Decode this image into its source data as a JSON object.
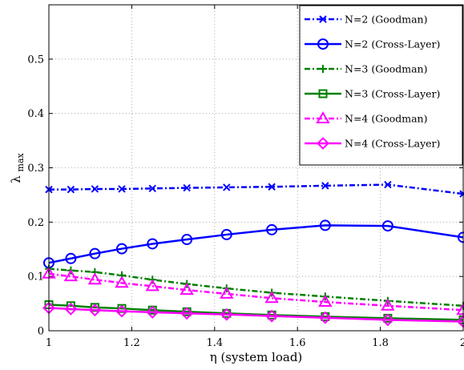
{
  "chart_data": {
    "type": "line",
    "xlabel": "η (system load)",
    "ylabel_main": "λ",
    "ylabel_sub": "max",
    "xlim": [
      1,
      2
    ],
    "ylim": [
      0,
      0.6
    ],
    "xticks": [
      1,
      1.2,
      1.4,
      1.6,
      1.8,
      2
    ],
    "xtick_labels": [
      "1",
      "1.2",
      "1.4",
      "1.6",
      "1.8",
      "2"
    ],
    "yticks": [
      0,
      0.1,
      0.2,
      0.3,
      0.4,
      0.5
    ],
    "ytick_labels": [
      "0",
      "0.1",
      "0.2",
      "0.3",
      "0.4",
      "0.5"
    ],
    "grid": true,
    "legend_position": "top-right",
    "x": [
      1.0,
      1.053,
      1.111,
      1.176,
      1.25,
      1.333,
      1.429,
      1.538,
      1.667,
      1.818,
      2.0
    ],
    "series": [
      {
        "name": "N=2 (Goodman)",
        "color": "#0000ff",
        "marker": "x",
        "dash": "dashdot",
        "values": [
          0.26,
          0.26,
          0.261,
          0.261,
          0.262,
          0.263,
          0.264,
          0.265,
          0.267,
          0.269,
          0.252
        ]
      },
      {
        "name": "N=2 (Cross-Layer)",
        "color": "#0000ff",
        "marker": "circle",
        "dash": "solid",
        "values": [
          0.125,
          0.133,
          0.142,
          0.151,
          0.16,
          0.168,
          0.177,
          0.186,
          0.194,
          0.193,
          0.172
        ]
      },
      {
        "name": "N=3 (Goodman)",
        "color": "#008000",
        "marker": "plus",
        "dash": "dashdot",
        "values": [
          0.114,
          0.111,
          0.108,
          0.102,
          0.094,
          0.086,
          0.078,
          0.07,
          0.063,
          0.055,
          0.046
        ]
      },
      {
        "name": "N=3 (Cross-Layer)",
        "color": "#008000",
        "marker": "square",
        "dash": "solid",
        "values": [
          0.048,
          0.046,
          0.043,
          0.041,
          0.038,
          0.035,
          0.032,
          0.029,
          0.026,
          0.023,
          0.02
        ]
      },
      {
        "name": "N=4 (Goodman)",
        "color": "#ff00ff",
        "marker": "triangle",
        "dash": "dashdot",
        "values": [
          0.105,
          0.1,
          0.094,
          0.088,
          0.082,
          0.075,
          0.068,
          0.06,
          0.053,
          0.046,
          0.038
        ]
      },
      {
        "name": "N=4 (Cross-Layer)",
        "color": "#ff00ff",
        "marker": "diamond",
        "dash": "solid",
        "values": [
          0.042,
          0.04,
          0.038,
          0.036,
          0.034,
          0.032,
          0.03,
          0.027,
          0.024,
          0.02,
          0.017
        ]
      }
    ]
  }
}
